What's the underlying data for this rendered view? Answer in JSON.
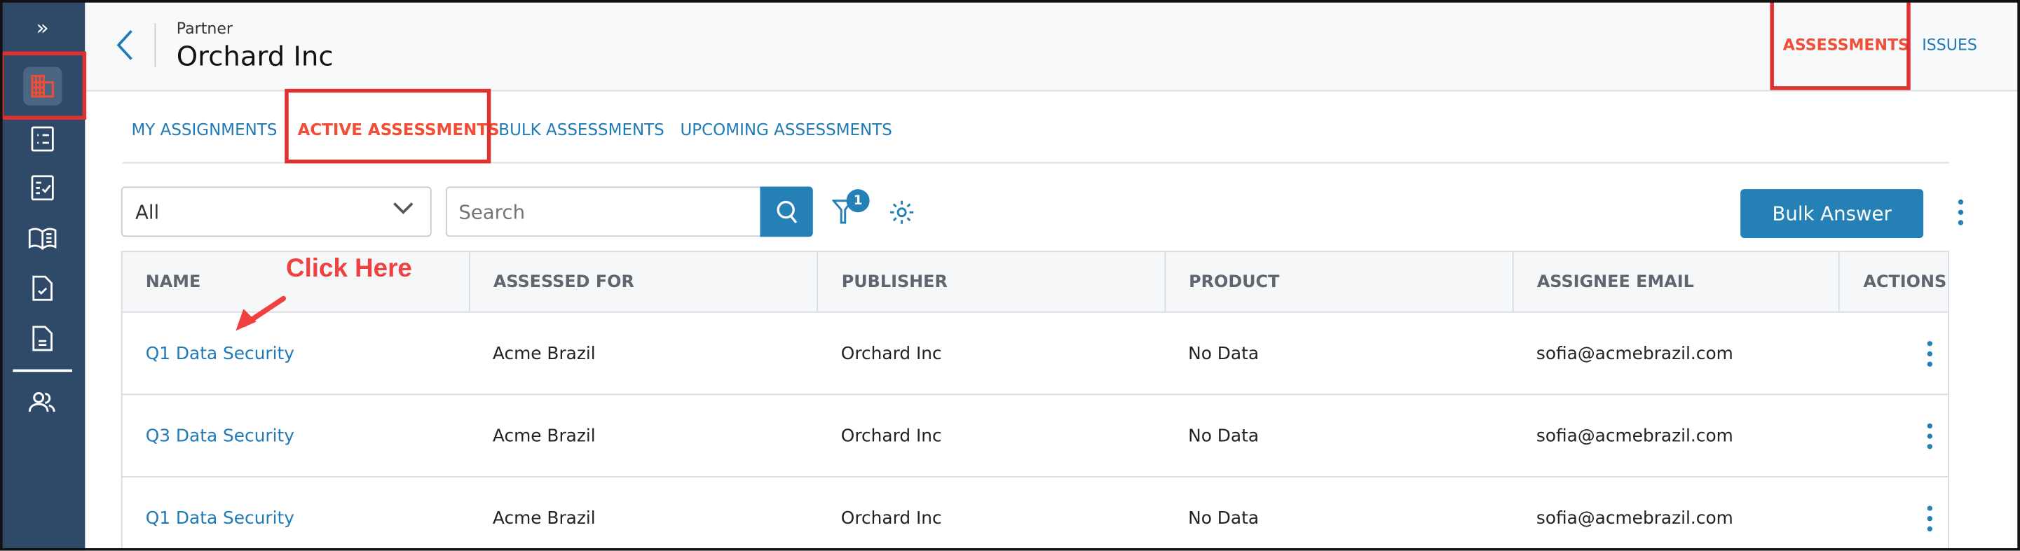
{
  "colors": {
    "accent": "#2480b5",
    "active_tab": "#f04e37",
    "sidebar": "#2f4a69",
    "annotation": "#e03131"
  },
  "sidebar": {
    "items": [
      {
        "icon": "expand-chevrons-icon",
        "label": "»"
      },
      {
        "icon": "building-icon",
        "active": true
      },
      {
        "icon": "list-icon"
      },
      {
        "icon": "checklist-icon"
      },
      {
        "icon": "book-icon"
      },
      {
        "icon": "document-check-icon"
      },
      {
        "icon": "document-icon"
      },
      {
        "icon": "users-icon"
      }
    ]
  },
  "header": {
    "subtitle": "Partner",
    "title": "Orchard Inc",
    "tabs": [
      {
        "label": "ASSESSMENTS",
        "active": true
      },
      {
        "label": "ISSUES"
      }
    ]
  },
  "tabs": [
    {
      "label": "MY ASSIGNMENTS"
    },
    {
      "label": "ACTIVE ASSESSMENTS",
      "active": true
    },
    {
      "label": "BULK ASSESSMENTS"
    },
    {
      "label": "UPCOMING ASSESSMENTS"
    }
  ],
  "toolbar": {
    "select_value": "All",
    "search_placeholder": "Search",
    "filter_count": "1",
    "bulk_answer_label": "Bulk Answer"
  },
  "table": {
    "columns": [
      "NAME",
      "ASSESSED FOR",
      "PUBLISHER",
      "PRODUCT",
      "ASSIGNEE EMAIL",
      "ACTIONS"
    ],
    "rows": [
      [
        "Q1 Data Security",
        "Acme Brazil",
        "Orchard Inc",
        "No Data",
        "sofia@acmebrazil.com"
      ],
      [
        "Q3 Data Security",
        "Acme Brazil",
        "Orchard Inc",
        "No Data",
        "sofia@acmebrazil.com"
      ],
      [
        "Q1 Data Security",
        "Acme Brazil",
        "Orchard Inc",
        "No Data",
        "sofia@acmebrazil.com"
      ]
    ]
  },
  "annotation": {
    "text": "Click Here"
  }
}
